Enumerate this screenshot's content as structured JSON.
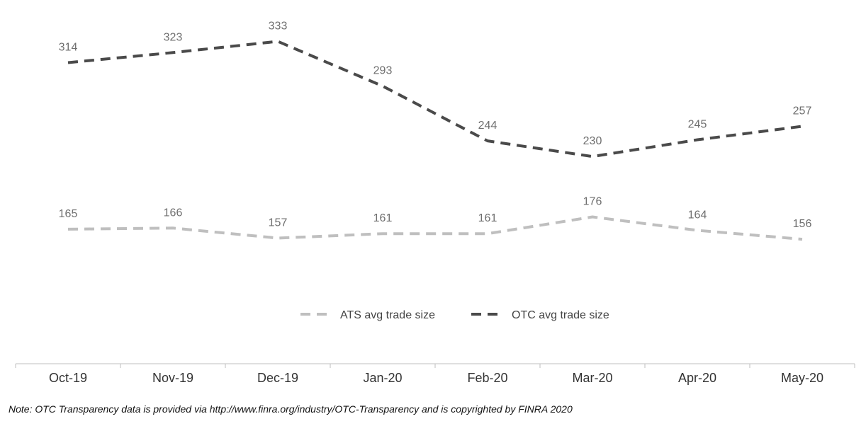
{
  "chart_data": {
    "type": "line",
    "categories": [
      "Oct-19",
      "Nov-19",
      "Dec-19",
      "Jan-20",
      "Feb-20",
      "Mar-20",
      "Apr-20",
      "May-20"
    ],
    "series": [
      {
        "name": "ATS avg trade size",
        "values": [
          165,
          166,
          157,
          161,
          161,
          176,
          164,
          156
        ],
        "color": "#bfbfbf",
        "dash": "dashed"
      },
      {
        "name": "OTC avg trade size",
        "values": [
          314,
          323,
          333,
          293,
          244,
          230,
          245,
          257
        ],
        "color": "#4a4a4a",
        "dash": "dashed"
      }
    ],
    "title": "",
    "xlabel": "",
    "ylabel": "",
    "ylim": [
      0,
      350
    ],
    "grid": false,
    "data_labels": true,
    "legend_position": "bottom"
  },
  "note": "Note:  OTC Transparency data is provided via http://www.finra.org/industry/OTC-Transparency and is copyrighted by FINRA 2020"
}
